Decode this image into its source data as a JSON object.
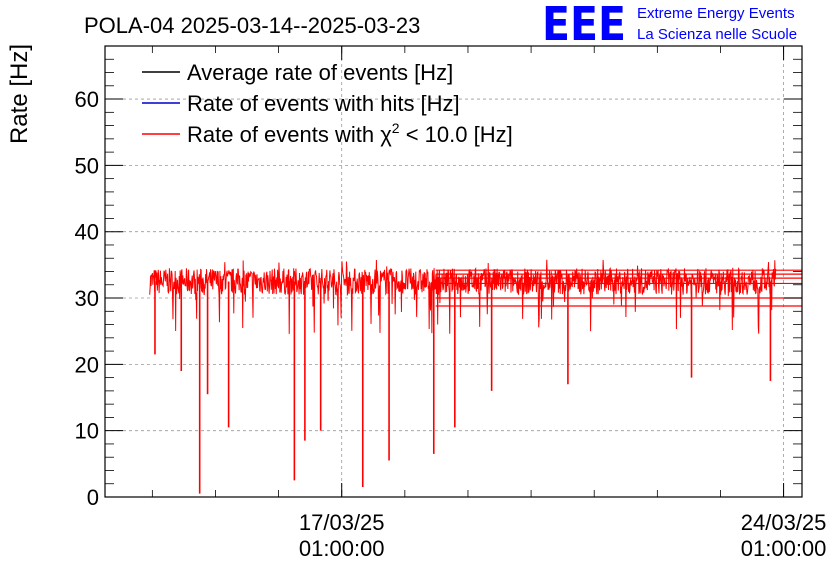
{
  "chart_data": {
    "type": "line",
    "title": "POLA-04 2025-03-14--2025-03-23",
    "ylabel": "Rate [Hz]",
    "xlabel": "",
    "ylim": [
      0,
      68
    ],
    "xlim": [
      "2025-03-13 07:00:00",
      "2025-03-24 08:00:00"
    ],
    "yticks": [
      0,
      10,
      20,
      30,
      40,
      50,
      60
    ],
    "xticks": [
      {
        "date": "2025-03-17 01:00:00",
        "line1": "17/03/25",
        "line2": "01:00:00"
      },
      {
        "date": "2025-03-24 01:00:00",
        "line1": "24/03/25",
        "line2": "01:00:00"
      }
    ],
    "grid": true,
    "legend_position": "top-left",
    "series": [
      {
        "name": "Average rate of events [Hz]",
        "color": "#000000"
      },
      {
        "name": "Rate of events with hits [Hz]",
        "color": "#0000cc"
      },
      {
        "name": "Rate of events with χ² < 10.0 [Hz]",
        "name_base": "Rate of events with ",
        "name_chi": "χ",
        "name_sup": "2",
        "name_tail": " < 10.0 [Hz]",
        "color": "#ff0000",
        "data_start": "2025-03-14 00:00:00",
        "data_end": "2025-03-23 22:00:00",
        "baseline": 32.5,
        "band": [
          30.5,
          34.5
        ],
        "dips": [
          {
            "date": "2025-03-14 02:00:00",
            "value": 21.5
          },
          {
            "date": "2025-03-14 12:00:00",
            "value": 19
          },
          {
            "date": "2025-03-14 19:00:00",
            "value": 0.5
          },
          {
            "date": "2025-03-14 22:00:00",
            "value": 15.5
          },
          {
            "date": "2025-03-15 06:00:00",
            "value": 10.5
          },
          {
            "date": "2025-03-16 07:00:00",
            "value": 2.5
          },
          {
            "date": "2025-03-16 11:00:00",
            "value": 8.5
          },
          {
            "date": "2025-03-16 17:00:00",
            "value": 10
          },
          {
            "date": "2025-03-17 09:00:00",
            "value": 1.5
          },
          {
            "date": "2025-03-17 19:00:00",
            "value": 5.5
          },
          {
            "date": "2025-03-18 12:00:00",
            "value": 6.5
          },
          {
            "date": "2025-03-18 20:00:00",
            "value": 10.5
          },
          {
            "date": "2025-03-19 10:00:00",
            "value": 16
          },
          {
            "date": "2025-03-20 15:00:00",
            "value": 17
          },
          {
            "date": "2025-03-22 14:00:00",
            "value": 18
          },
          {
            "date": "2025-03-23 20:00:00",
            "value": 17.5
          }
        ],
        "trailing_levels": [
          34.2,
          33.6,
          33.0,
          32.2,
          30.0,
          28.8
        ]
      }
    ]
  },
  "logo": {
    "mark": "EEE",
    "line1": "Extreme Energy Events",
    "line2": "La Scienza nelle Scuole",
    "color": "#0000ff"
  }
}
